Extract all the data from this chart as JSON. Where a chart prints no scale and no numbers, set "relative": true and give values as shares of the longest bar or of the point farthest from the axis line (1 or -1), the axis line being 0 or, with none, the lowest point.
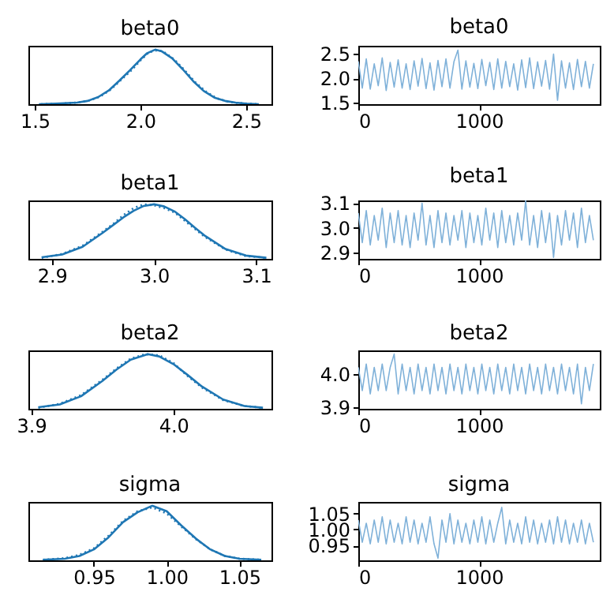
{
  "chart_data": [
    {
      "type": "line",
      "title": "beta0",
      "relative": true,
      "xlim": [
        1.47,
        2.62
      ],
      "xticks": [
        1.5,
        {
          "value": 2.0,
          "label": "2.0"
        },
        2.5
      ],
      "series": [
        {
          "color": "#1f77b4",
          "line_style": "solid",
          "x": [
            1.52,
            1.6,
            1.7,
            1.75,
            1.8,
            1.85,
            1.9,
            1.95,
            2.0,
            2.03,
            2.07,
            2.1,
            2.15,
            2.2,
            2.25,
            2.3,
            2.35,
            2.4,
            2.45,
            2.5,
            2.56
          ],
          "values": [
            0.0,
            0.01,
            0.03,
            0.06,
            0.13,
            0.25,
            0.43,
            0.62,
            0.82,
            0.93,
            1.0,
            0.97,
            0.84,
            0.64,
            0.42,
            0.24,
            0.12,
            0.06,
            0.03,
            0.01,
            0.0
          ]
        },
        {
          "color": "#1f77b4",
          "line_style": "dotted",
          "x": [
            1.53,
            1.62,
            1.7,
            1.76,
            1.81,
            1.86,
            1.91,
            1.96,
            2.0,
            2.04,
            2.08,
            2.11,
            2.16,
            2.21,
            2.26,
            2.31,
            2.36,
            2.41,
            2.46,
            2.51,
            2.55
          ],
          "values": [
            0.0,
            0.01,
            0.03,
            0.07,
            0.14,
            0.27,
            0.45,
            0.63,
            0.8,
            0.95,
            0.99,
            0.96,
            0.82,
            0.62,
            0.4,
            0.23,
            0.11,
            0.05,
            0.02,
            0.01,
            0.0
          ]
        }
      ]
    },
    {
      "type": "line",
      "title": "beta0",
      "xlim": [
        0,
        2000
      ],
      "xticks": [
        0,
        1000
      ],
      "ylim": [
        1.47,
        2.67
      ],
      "yticks": [
        1.5,
        {
          "value": 2.0,
          "label": "2.0"
        },
        2.5
      ],
      "x": [
        0,
        33,
        66,
        99,
        132,
        165,
        198,
        231,
        264,
        297,
        330,
        363,
        396,
        429,
        462,
        495,
        528,
        561,
        594,
        627,
        660,
        693,
        726,
        759,
        792,
        825,
        858,
        891,
        924,
        957,
        990,
        1023,
        1056,
        1089,
        1122,
        1155,
        1188,
        1221,
        1254,
        1287,
        1320,
        1353,
        1386,
        1419,
        1452,
        1485,
        1518,
        1551,
        1584,
        1617,
        1650,
        1683,
        1716,
        1749,
        1782,
        1815,
        1848,
        1881,
        1914,
        1947
      ],
      "series": [
        {
          "color": "#7fb1d9",
          "values": [
            2.35,
            1.8,
            2.4,
            1.78,
            2.3,
            1.85,
            2.42,
            1.75,
            2.33,
            1.82,
            2.38,
            1.8,
            2.3,
            1.77,
            2.36,
            1.84,
            2.41,
            1.79,
            2.32,
            1.76,
            2.37,
            1.83,
            2.4,
            1.8,
            2.34,
            2.58,
            1.78,
            2.36,
            1.82,
            2.31,
            1.79,
            2.39,
            1.85,
            2.33,
            1.77,
            2.4,
            1.8,
            2.35,
            1.83,
            2.3,
            1.76,
            2.38,
            1.81,
            2.42,
            1.79,
            2.34,
            1.84,
            2.37,
            1.78,
            2.5,
            1.55,
            2.36,
            1.8,
            2.32,
            1.77,
            2.39,
            1.83,
            2.35,
            1.8,
            2.3
          ]
        }
      ]
    },
    {
      "type": "line",
      "title": "beta1",
      "relative": true,
      "xlim": [
        2.877,
        3.115
      ],
      "xticks": [
        2.9,
        {
          "value": 3.0,
          "label": "3.0"
        },
        3.1
      ],
      "series": [
        {
          "color": "#1f77b4",
          "line_style": "solid",
          "x": [
            2.89,
            2.91,
            2.93,
            2.95,
            2.96,
            2.97,
            2.98,
            2.99,
            3.0,
            3.01,
            3.02,
            3.03,
            3.04,
            3.05,
            3.07,
            3.09,
            3.11
          ],
          "values": [
            0.03,
            0.08,
            0.22,
            0.48,
            0.62,
            0.76,
            0.88,
            0.97,
            1.0,
            0.96,
            0.87,
            0.73,
            0.57,
            0.42,
            0.18,
            0.06,
            0.02
          ]
        },
        {
          "color": "#1f77b4",
          "line_style": "dotted",
          "x": [
            2.89,
            2.91,
            2.93,
            2.95,
            2.96,
            2.97,
            2.98,
            2.99,
            3.0,
            3.01,
            3.02,
            3.03,
            3.04,
            3.05,
            3.07,
            3.09,
            3.11
          ],
          "values": [
            0.02,
            0.09,
            0.24,
            0.5,
            0.64,
            0.8,
            0.93,
            1.0,
            0.98,
            0.93,
            0.85,
            0.7,
            0.55,
            0.4,
            0.17,
            0.05,
            0.02
          ]
        }
      ]
    },
    {
      "type": "line",
      "title": "beta1",
      "xlim": [
        0,
        2000
      ],
      "xticks": [
        0,
        1000
      ],
      "ylim": [
        2.874,
        3.111
      ],
      "yticks": [
        2.9,
        {
          "value": 3.0,
          "label": "3.0"
        },
        3.1
      ],
      "x": [
        0,
        33,
        66,
        99,
        132,
        165,
        198,
        231,
        264,
        297,
        330,
        363,
        396,
        429,
        462,
        495,
        528,
        561,
        594,
        627,
        660,
        693,
        726,
        759,
        792,
        825,
        858,
        891,
        924,
        957,
        990,
        1023,
        1056,
        1089,
        1122,
        1155,
        1188,
        1221,
        1254,
        1287,
        1320,
        1353,
        1386,
        1419,
        1452,
        1485,
        1518,
        1551,
        1584,
        1617,
        1650,
        1683,
        1716,
        1749,
        1782,
        1815,
        1848,
        1881,
        1914,
        1947
      ],
      "series": [
        {
          "color": "#7fb1d9",
          "values": [
            3.06,
            2.94,
            3.07,
            2.93,
            3.05,
            2.95,
            3.08,
            2.92,
            3.06,
            2.94,
            3.07,
            2.93,
            3.05,
            2.92,
            3.06,
            2.95,
            3.1,
            2.93,
            3.05,
            2.92,
            3.07,
            2.94,
            3.06,
            2.93,
            3.05,
            2.95,
            3.07,
            2.92,
            3.06,
            2.94,
            3.05,
            2.93,
            3.08,
            2.95,
            3.06,
            2.92,
            3.07,
            2.94,
            3.05,
            2.93,
            3.06,
            2.95,
            3.11,
            2.93,
            3.05,
            2.92,
            3.07,
            2.94,
            3.06,
            2.88,
            3.05,
            2.93,
            3.07,
            2.95,
            3.06,
            2.92,
            3.08,
            2.94,
            3.05,
            2.95
          ]
        }
      ]
    },
    {
      "type": "line",
      "title": "beta2",
      "relative": true,
      "xlim": [
        3.898,
        4.069
      ],
      "xticks": [
        3.9,
        {
          "value": 4.0,
          "label": "4.0"
        }
      ],
      "series": [
        {
          "color": "#1f77b4",
          "line_style": "solid",
          "x": [
            3.905,
            3.92,
            3.935,
            3.95,
            3.96,
            3.97,
            3.982,
            3.99,
            4.0,
            4.01,
            4.02,
            4.035,
            4.05,
            4.063
          ],
          "values": [
            0.03,
            0.08,
            0.23,
            0.51,
            0.72,
            0.9,
            1.0,
            0.96,
            0.82,
            0.62,
            0.41,
            0.17,
            0.05,
            0.02
          ]
        },
        {
          "color": "#1f77b4",
          "line_style": "dotted",
          "x": [
            3.905,
            3.92,
            3.935,
            3.95,
            3.96,
            3.97,
            3.98,
            3.99,
            4.0,
            4.01,
            4.02,
            4.035,
            4.05,
            4.063
          ],
          "values": [
            0.02,
            0.09,
            0.25,
            0.53,
            0.74,
            0.92,
            1.0,
            0.98,
            0.84,
            0.6,
            0.39,
            0.16,
            0.05,
            0.02
          ]
        }
      ]
    },
    {
      "type": "line",
      "title": "beta2",
      "xlim": [
        0,
        2000
      ],
      "xticks": [
        0,
        1000
      ],
      "ylim": [
        3.895,
        4.071
      ],
      "yticks": [
        3.9,
        {
          "value": 4.0,
          "label": "4.0"
        }
      ],
      "x": [
        0,
        33,
        66,
        99,
        132,
        165,
        198,
        231,
        264,
        297,
        330,
        363,
        396,
        429,
        462,
        495,
        528,
        561,
        594,
        627,
        660,
        693,
        726,
        759,
        792,
        825,
        858,
        891,
        924,
        957,
        990,
        1023,
        1056,
        1089,
        1122,
        1155,
        1188,
        1221,
        1254,
        1287,
        1320,
        1353,
        1386,
        1419,
        1452,
        1485,
        1518,
        1551,
        1584,
        1617,
        1650,
        1683,
        1716,
        1749,
        1782,
        1815,
        1848,
        1881,
        1914,
        1947
      ],
      "series": [
        {
          "color": "#7fb1d9",
          "values": [
            4.02,
            3.95,
            4.03,
            3.94,
            4.02,
            3.95,
            4.03,
            3.95,
            4.02,
            4.06,
            3.94,
            4.03,
            3.95,
            4.02,
            3.94,
            4.03,
            3.95,
            4.02,
            3.94,
            4.03,
            3.95,
            4.02,
            3.94,
            4.03,
            3.95,
            4.02,
            3.94,
            4.03,
            3.95,
            4.02,
            3.94,
            4.03,
            3.95,
            4.02,
            3.94,
            4.03,
            3.95,
            4.02,
            3.94,
            4.03,
            3.95,
            4.02,
            3.94,
            4.03,
            3.95,
            4.02,
            3.94,
            4.03,
            3.95,
            4.02,
            3.94,
            4.03,
            3.95,
            4.02,
            3.94,
            4.03,
            3.91,
            4.02,
            3.95,
            4.03
          ]
        }
      ]
    },
    {
      "type": "line",
      "title": "sigma",
      "relative": true,
      "xlim": [
        0.905,
        1.072
      ],
      "xticks": [
        0.95,
        {
          "value": 1.0,
          "label": "1.00"
        },
        1.05
      ],
      "series": [
        {
          "color": "#1f77b4",
          "line_style": "solid",
          "x": [
            0.915,
            0.93,
            0.94,
            0.95,
            0.96,
            0.97,
            0.98,
            0.99,
            1.0,
            1.01,
            1.02,
            1.03,
            1.04,
            1.05,
            1.065
          ],
          "values": [
            0.01,
            0.03,
            0.08,
            0.2,
            0.42,
            0.7,
            0.88,
            1.0,
            0.9,
            0.64,
            0.4,
            0.2,
            0.08,
            0.03,
            0.01
          ]
        },
        {
          "color": "#1f77b4",
          "line_style": "dotted",
          "x": [
            0.915,
            0.93,
            0.94,
            0.95,
            0.96,
            0.97,
            0.98,
            0.99,
            1.0,
            1.01,
            1.02,
            1.03,
            1.04,
            1.05,
            1.065
          ],
          "values": [
            0.01,
            0.04,
            0.1,
            0.22,
            0.45,
            0.72,
            0.9,
            0.97,
            0.86,
            0.62,
            0.39,
            0.2,
            0.08,
            0.03,
            0.01
          ]
        }
      ]
    },
    {
      "type": "line",
      "title": "sigma",
      "xlim": [
        0,
        2000
      ],
      "xticks": [
        0,
        1000
      ],
      "ylim": [
        0.903,
        1.087
      ],
      "yticks": [
        {
          "value": 0.95,
          "label": "0.95"
        },
        {
          "value": 1.0,
          "label": "1.00"
        },
        1.05
      ],
      "x": [
        0,
        33,
        66,
        99,
        132,
        165,
        198,
        231,
        264,
        297,
        330,
        363,
        396,
        429,
        462,
        495,
        528,
        561,
        594,
        627,
        660,
        693,
        726,
        759,
        792,
        825,
        858,
        891,
        924,
        957,
        990,
        1023,
        1056,
        1089,
        1122,
        1155,
        1188,
        1221,
        1254,
        1287,
        1320,
        1353,
        1386,
        1419,
        1452,
        1485,
        1518,
        1551,
        1584,
        1617,
        1650,
        1683,
        1716,
        1749,
        1782,
        1815,
        1848,
        1881,
        1914,
        1947
      ],
      "series": [
        {
          "color": "#7fb1d9",
          "values": [
            1.03,
            0.96,
            1.02,
            0.955,
            1.03,
            0.96,
            1.04,
            0.955,
            1.03,
            0.96,
            1.02,
            0.955,
            1.04,
            0.96,
            1.03,
            0.955,
            1.02,
            0.96,
            1.04,
            0.955,
            0.91,
            1.03,
            0.96,
            1.05,
            0.955,
            1.03,
            0.96,
            1.02,
            0.955,
            1.03,
            0.96,
            1.04,
            0.955,
            1.03,
            0.96,
            1.02,
            1.07,
            0.955,
            1.03,
            0.96,
            1.02,
            0.955,
            1.04,
            0.96,
            1.03,
            0.955,
            1.02,
            0.96,
            1.03,
            0.955,
            1.04,
            0.96,
            1.03,
            0.955,
            1.02,
            0.96,
            1.03,
            0.955,
            1.02,
            0.96
          ]
        }
      ]
    }
  ]
}
